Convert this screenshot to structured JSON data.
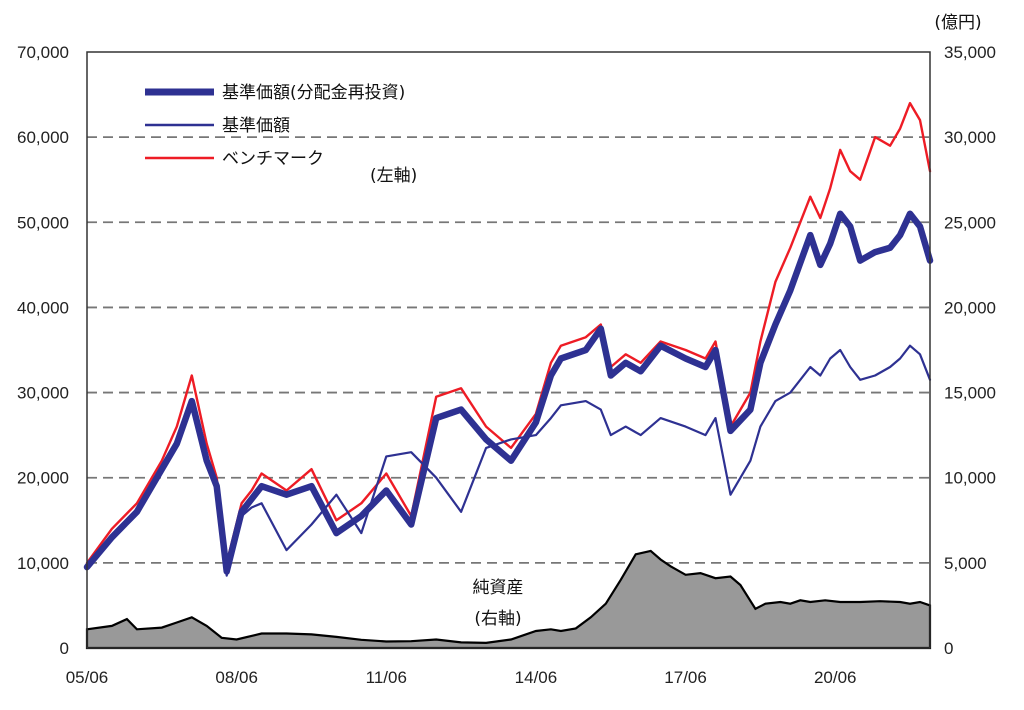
{
  "chart_data": {
    "type": "line",
    "title": "",
    "x_ticks": [
      "05/06",
      "08/06",
      "11/06",
      "14/06",
      "17/06",
      "20/06"
    ],
    "y_left": {
      "min": 0,
      "max": 70000,
      "ticks": [
        "0",
        "10,000",
        "20,000",
        "30,000",
        "40,000",
        "50,000",
        "60,000",
        "70,000"
      ]
    },
    "y_right": {
      "unit": "(億円)",
      "min": 0,
      "max": 35000,
      "ticks": [
        "0",
        "5,000",
        "10,000",
        "15,000",
        "20,000",
        "25,000",
        "30,000",
        "35,000"
      ]
    },
    "gridlines": "dashed",
    "legend": {
      "position": "top-left",
      "items": [
        "基準価額(分配金再投資)",
        "基準価額",
        "ベンチマーク"
      ],
      "axis_note": "(左軸)"
    },
    "area_label": {
      "line1": "純資産",
      "line2": "(右軸)"
    },
    "colors": {
      "reinvested": "#2e3192",
      "nav": "#2e3192",
      "benchmark": "#ee1c25",
      "net_assets": "#999999"
    },
    "series": [
      {
        "name": "基準価額(分配金再投資)",
        "axis": "left",
        "style": "thick",
        "x": [
          2005.5,
          2006.0,
          2006.5,
          2007.0,
          2007.3,
          2007.6,
          2007.9,
          2008.1,
          2008.3,
          2008.6,
          2008.8,
          2009.0,
          2009.5,
          2010.0,
          2010.5,
          2011.0,
          2011.5,
          2012.0,
          2012.5,
          2013.0,
          2013.5,
          2014.0,
          2014.5,
          2014.8,
          2015.0,
          2015.5,
          2015.8,
          2016.0,
          2016.3,
          2016.6,
          2017.0,
          2017.5,
          2017.9,
          2018.1,
          2018.4,
          2018.8,
          2019.0,
          2019.3,
          2019.6,
          2020.0,
          2020.2,
          2020.4,
          2020.6,
          2020.8,
          2021.0,
          2021.3,
          2021.6,
          2021.8,
          2022.0,
          2022.2,
          2022.4
        ],
        "values": [
          9500,
          13000,
          16000,
          21000,
          24000,
          29000,
          22000,
          19000,
          9000,
          16000,
          17500,
          19000,
          18000,
          19000,
          13500,
          15500,
          18500,
          14500,
          27000,
          28000,
          24500,
          22000,
          26500,
          32000,
          34000,
          35000,
          37500,
          32000,
          33500,
          32500,
          35500,
          34000,
          33000,
          35000,
          25500,
          28000,
          33500,
          38000,
          42000,
          48500,
          45000,
          47500,
          51000,
          49500,
          45500,
          46500,
          47000,
          48500,
          51000,
          49500,
          45500
        ]
      },
      {
        "name": "基準価額",
        "axis": "left",
        "style": "thin",
        "x": [
          2005.5,
          2006.0,
          2006.5,
          2007.0,
          2007.3,
          2007.6,
          2007.9,
          2008.1,
          2008.3,
          2008.6,
          2008.8,
          2009.0,
          2009.5,
          2010.0,
          2010.5,
          2011.0,
          2011.5,
          2012.0,
          2012.5,
          2013.0,
          2013.5,
          2014.0,
          2014.5,
          2014.8,
          2015.0,
          2015.5,
          2015.8,
          2016.0,
          2016.3,
          2016.6,
          2017.0,
          2017.5,
          2017.9,
          2018.1,
          2018.4,
          2018.8,
          2019.0,
          2019.3,
          2019.6,
          2020.0,
          2020.2,
          2020.4,
          2020.6,
          2020.8,
          2021.0,
          2021.3,
          2021.6,
          2021.8,
          2022.0,
          2022.2,
          2022.4
        ],
        "values": [
          9500,
          13000,
          16000,
          21000,
          24000,
          29000,
          22000,
          18500,
          8500,
          15500,
          16500,
          17000,
          11500,
          14500,
          18000,
          13500,
          22500,
          23000,
          20000,
          16000,
          23500,
          24500,
          25000,
          27000,
          28500,
          29000,
          28000,
          25000,
          26000,
          25000,
          27000,
          26000,
          25000,
          27000,
          18000,
          22000,
          26000,
          29000,
          30000,
          33000,
          32000,
          34000,
          35000,
          33000,
          31500,
          32000,
          33000,
          34000,
          35500,
          34500,
          31500
        ]
      },
      {
        "name": "ベンチマーク",
        "axis": "left",
        "style": "thin",
        "x": [
          2005.5,
          2006.0,
          2006.5,
          2007.0,
          2007.3,
          2007.6,
          2007.9,
          2008.1,
          2008.3,
          2008.6,
          2008.8,
          2009.0,
          2009.5,
          2010.0,
          2010.5,
          2011.0,
          2011.5,
          2012.0,
          2012.5,
          2013.0,
          2013.5,
          2014.0,
          2014.5,
          2014.8,
          2015.0,
          2015.5,
          2015.8,
          2016.0,
          2016.3,
          2016.6,
          2017.0,
          2017.5,
          2017.9,
          2018.1,
          2018.4,
          2018.8,
          2019.0,
          2019.3,
          2019.6,
          2020.0,
          2020.2,
          2020.4,
          2020.6,
          2020.8,
          2021.0,
          2021.3,
          2021.6,
          2021.8,
          2022.0,
          2022.2,
          2022.4
        ],
        "values": [
          10000,
          14000,
          17000,
          22000,
          26000,
          32000,
          24000,
          20000,
          10000,
          17000,
          18500,
          20500,
          18500,
          21000,
          15000,
          17000,
          20500,
          15500,
          29500,
          30500,
          26000,
          23500,
          27500,
          33500,
          35500,
          36500,
          38000,
          33000,
          34500,
          33500,
          36000,
          35000,
          34000,
          36000,
          26000,
          30000,
          36000,
          43000,
          47000,
          53000,
          50500,
          54000,
          58500,
          56000,
          55000,
          60000,
          59000,
          61000,
          64000,
          62000,
          56000
        ]
      },
      {
        "name": "純資産",
        "axis": "right",
        "style": "area",
        "x": [
          2005.5,
          2006.0,
          2006.3,
          2006.5,
          2007.0,
          2007.3,
          2007.6,
          2007.9,
          2008.2,
          2008.5,
          2009.0,
          2009.5,
          2010.0,
          2010.5,
          2011.0,
          2011.5,
          2012.0,
          2012.5,
          2013.0,
          2013.5,
          2014.0,
          2014.5,
          2014.8,
          2015.0,
          2015.3,
          2015.6,
          2015.9,
          2016.2,
          2016.5,
          2016.8,
          2017.0,
          2017.2,
          2017.5,
          2017.8,
          2018.1,
          2018.4,
          2018.6,
          2018.9,
          2019.1,
          2019.4,
          2019.6,
          2019.8,
          2020.0,
          2020.3,
          2020.6,
          2021.0,
          2021.4,
          2021.8,
          2022.0,
          2022.2,
          2022.4
        ],
        "values": [
          1100,
          1300,
          1700,
          1100,
          1200,
          1500,
          1800,
          1300,
          600,
          500,
          850,
          850,
          800,
          650,
          480,
          380,
          400,
          500,
          330,
          300,
          500,
          1000,
          1100,
          1000,
          1150,
          1800,
          2600,
          4000,
          5500,
          5700,
          5200,
          4800,
          4300,
          4400,
          4100,
          4200,
          3700,
          2300,
          2600,
          2700,
          2600,
          2800,
          2700,
          2800,
          2700,
          2700,
          2750,
          2700,
          2600,
          2700,
          2500
        ]
      }
    ]
  }
}
